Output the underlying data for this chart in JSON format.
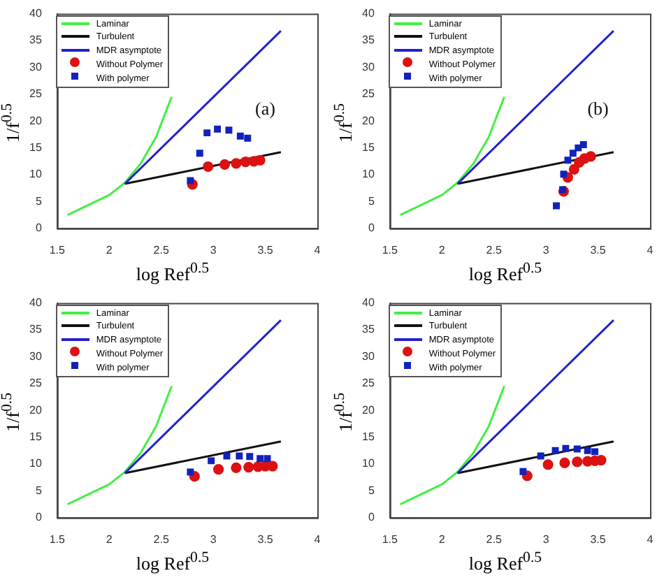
{
  "chart_data": [
    {
      "type": "scatter",
      "xlabel": "log Ref$^{0.5}$",
      "ylabel": "1/f$^{0.5}$",
      "annotations": [
        "(a)"
      ],
      "xlim": [
        1.5,
        4
      ],
      "ylim": [
        0,
        40
      ],
      "xticks": [
        1.5,
        2,
        2.5,
        3,
        3.5,
        4
      ],
      "yticks": [
        0,
        5,
        10,
        15,
        20,
        25,
        30,
        35,
        40
      ],
      "grid": false,
      "legend": "top left",
      "series": [
        {
          "name": "Laminar",
          "type": "line",
          "marker": "none",
          "color": "#44ee44",
          "x": [
            1.6,
            2.0,
            2.15,
            2.3,
            2.45,
            2.6
          ],
          "values": [
            2.5,
            6.2,
            8.5,
            12,
            17,
            24.5
          ]
        },
        {
          "name": "Turbulent",
          "type": "line",
          "marker": "none",
          "color": "#111111",
          "x": [
            2.15,
            3.65
          ],
          "values": [
            8.3,
            14.2
          ]
        },
        {
          "name": "MDR asymptote",
          "type": "line",
          "marker": "none",
          "color": "#2222cc",
          "x": [
            2.15,
            3.65
          ],
          "values": [
            8.3,
            36.8
          ]
        },
        {
          "name": "Without Polymer",
          "type": "scatter",
          "marker": "circle",
          "color": "#dd1111",
          "x": [
            2.8,
            2.95,
            3.11,
            3.22,
            3.31,
            3.39,
            3.45
          ],
          "values": [
            8.2,
            11.5,
            11.9,
            12.1,
            12.4,
            12.5,
            12.7
          ]
        },
        {
          "name": "With polymer",
          "type": "scatter",
          "marker": "square",
          "color": "#1122bb",
          "x": [
            2.78,
            2.87,
            2.94,
            3.04,
            3.15,
            3.26,
            3.33
          ],
          "values": [
            8.9,
            14,
            17.8,
            18.5,
            18.3,
            17.2,
            16.8
          ]
        }
      ]
    },
    {
      "type": "scatter",
      "xlabel": "log Ref$^{0.5}$",
      "ylabel": "1/f$^{0.5}$",
      "annotations": [
        "(b)"
      ],
      "xlim": [
        1.5,
        4
      ],
      "ylim": [
        0,
        40
      ],
      "xticks": [
        1.5,
        2,
        2.5,
        3,
        3.5,
        4
      ],
      "yticks": [
        0,
        5,
        10,
        15,
        20,
        25,
        30,
        35,
        40
      ],
      "grid": false,
      "legend": "top left",
      "series": [
        {
          "name": "Laminar",
          "type": "line",
          "marker": "none",
          "color": "#44ee44",
          "x": [
            1.6,
            2.0,
            2.15,
            2.3,
            2.45,
            2.6
          ],
          "values": [
            2.5,
            6.2,
            8.5,
            12,
            17,
            24.5
          ]
        },
        {
          "name": "Turbulent",
          "type": "line",
          "marker": "none",
          "color": "#111111",
          "x": [
            2.15,
            3.65
          ],
          "values": [
            8.3,
            14.2
          ]
        },
        {
          "name": "MDR asymptote",
          "type": "line",
          "marker": "none",
          "color": "#2222cc",
          "x": [
            2.15,
            3.65
          ],
          "values": [
            8.3,
            36.8
          ]
        },
        {
          "name": "Without Polymer",
          "type": "scatter",
          "marker": "circle",
          "color": "#dd1111",
          "x": [
            3.17,
            3.21,
            3.27,
            3.32,
            3.37,
            3.43
          ],
          "values": [
            6.9,
            9.5,
            11,
            12.3,
            13,
            13.4
          ]
        },
        {
          "name": "With polymer",
          "type": "scatter",
          "marker": "square",
          "color": "#1122bb",
          "x": [
            3.1,
            3.16,
            3.17,
            3.21,
            3.26,
            3.31,
            3.36
          ],
          "values": [
            4.2,
            7.2,
            10.1,
            12.7,
            14,
            15,
            15.6
          ]
        }
      ]
    },
    {
      "type": "scatter",
      "xlabel": "log Ref$^{0.5}$",
      "ylabel": "1/f$^{0.5}$",
      "xlim": [
        1.5,
        4
      ],
      "ylim": [
        0,
        40
      ],
      "xticks": [
        1.5,
        2,
        2.5,
        3,
        3.5,
        4
      ],
      "yticks": [
        0,
        5,
        10,
        15,
        20,
        25,
        30,
        35,
        40
      ],
      "grid": false,
      "legend": "top left",
      "series": [
        {
          "name": "Laminar",
          "type": "line",
          "marker": "none",
          "color": "#44ee44",
          "x": [
            1.6,
            2.0,
            2.15,
            2.3,
            2.45,
            2.6
          ],
          "values": [
            2.5,
            6.2,
            8.5,
            12,
            17,
            24.5
          ]
        },
        {
          "name": "Turbulent",
          "type": "line",
          "marker": "none",
          "color": "#111111",
          "x": [
            2.15,
            3.65
          ],
          "values": [
            8.3,
            14.2
          ]
        },
        {
          "name": "MDR asymptote",
          "type": "line",
          "marker": "none",
          "color": "#2222cc",
          "x": [
            2.15,
            3.65
          ],
          "values": [
            8.3,
            36.8
          ]
        },
        {
          "name": "Without Polymer",
          "type": "scatter",
          "marker": "circle",
          "color": "#dd1111",
          "x": [
            2.82,
            3.05,
            3.22,
            3.34,
            3.43,
            3.5,
            3.57
          ],
          "values": [
            7.7,
            9.0,
            9.3,
            9.4,
            9.5,
            9.6,
            9.6
          ]
        },
        {
          "name": "With polymer",
          "type": "scatter",
          "marker": "square",
          "color": "#1122bb",
          "x": [
            2.78,
            2.98,
            3.13,
            3.25,
            3.35,
            3.45,
            3.52
          ],
          "values": [
            8.5,
            10.6,
            11.5,
            11.5,
            11.4,
            11.0,
            11.0
          ]
        }
      ]
    },
    {
      "type": "scatter",
      "xlabel": "log Ref$^{0.5}$",
      "ylabel": "1/f$^{0.5}$",
      "xlim": [
        1.5,
        4
      ],
      "ylim": [
        0,
        40
      ],
      "xticks": [
        1.5,
        2,
        2.5,
        3,
        3.5,
        4
      ],
      "yticks": [
        0,
        5,
        10,
        15,
        20,
        25,
        30,
        35,
        40
      ],
      "grid": false,
      "legend": "top left",
      "series": [
        {
          "name": "Laminar",
          "type": "line",
          "marker": "none",
          "color": "#44ee44",
          "x": [
            1.6,
            2.0,
            2.15,
            2.3,
            2.45,
            2.6
          ],
          "values": [
            2.5,
            6.2,
            8.5,
            12,
            17,
            24.5
          ]
        },
        {
          "name": "Turbulent",
          "type": "line",
          "marker": "none",
          "color": "#111111",
          "x": [
            2.15,
            3.65
          ],
          "values": [
            8.3,
            14.2
          ]
        },
        {
          "name": "MDR asymptote",
          "type": "line",
          "marker": "none",
          "color": "#2222cc",
          "x": [
            2.15,
            3.65
          ],
          "values": [
            8.3,
            36.8
          ]
        },
        {
          "name": "Without Polymer",
          "type": "scatter",
          "marker": "circle",
          "color": "#dd1111",
          "x": [
            2.82,
            3.02,
            3.18,
            3.3,
            3.4,
            3.47,
            3.53
          ],
          "values": [
            7.8,
            9.9,
            10.2,
            10.4,
            10.5,
            10.6,
            10.7
          ]
        },
        {
          "name": "With polymer",
          "type": "scatter",
          "marker": "square",
          "color": "#1122bb",
          "x": [
            2.78,
            2.95,
            3.09,
            3.19,
            3.3,
            3.4,
            3.47
          ],
          "values": [
            8.6,
            11.5,
            12.5,
            12.9,
            12.8,
            12.5,
            12.3
          ]
        }
      ]
    }
  ]
}
